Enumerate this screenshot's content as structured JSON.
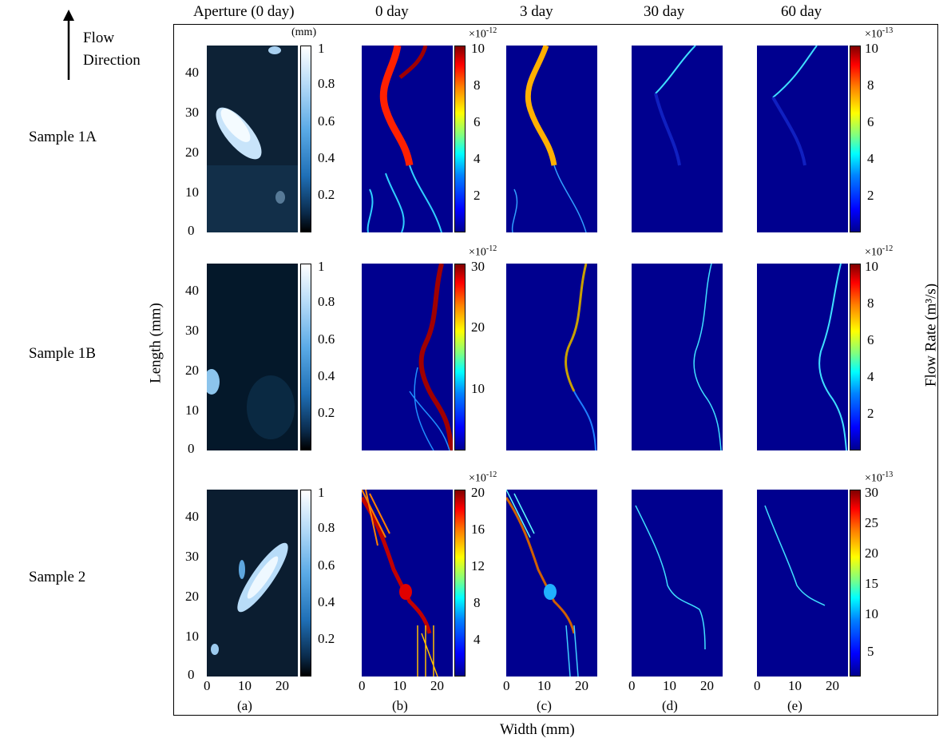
{
  "flow_direction": {
    "line1": "Flow",
    "line2": "Direction"
  },
  "column_headers": [
    "Aperture (0 day)",
    "0 day",
    "3 day",
    "30 day",
    "60 day"
  ],
  "row_labels": [
    "Sample 1A",
    "Sample 1B",
    "Sample 2"
  ],
  "aperture_unit": "(mm)",
  "aperture_ticks": [
    "1",
    "0.8",
    "0.6",
    "0.4",
    "0.2"
  ],
  "y_axis_label": "Length (mm)",
  "y_ticks": [
    "40",
    "30",
    "20",
    "10",
    "0"
  ],
  "x_ticks": [
    "0",
    "10",
    "20"
  ],
  "x_axis_label": "Width (mm)",
  "panel_letters": [
    "(a)",
    "(b)",
    "(c)",
    "(d)",
    "(e)"
  ],
  "right_axis_label": "Flow Rate (m³/s)",
  "row1": {
    "left_mult": {
      "base": "×10",
      "exp": "-12"
    },
    "left_ticks": [
      "10",
      "8",
      "6",
      "4",
      "2"
    ],
    "right_mult": {
      "base": "×10",
      "exp": "-13"
    },
    "right_ticks": [
      "10",
      "8",
      "6",
      "4",
      "2"
    ]
  },
  "row2": {
    "left_mult": {
      "base": "×10",
      "exp": "-12"
    },
    "left_ticks": [
      "30",
      "20",
      "10"
    ],
    "right_mult": {
      "base": "×10",
      "exp": "-12"
    },
    "right_ticks": [
      "10",
      "8",
      "6",
      "4",
      "2"
    ]
  },
  "row3": {
    "left_mult": {
      "base": "×10",
      "exp": "-12"
    },
    "left_ticks": [
      "20",
      "16",
      "12",
      "8",
      "4"
    ],
    "right_mult": {
      "base": "×10",
      "exp": "-13"
    },
    "right_ticks": [
      "30",
      "25",
      "20",
      "15",
      "10",
      "5"
    ]
  },
  "colors": {
    "jet_background": "#00008f",
    "frame": "#000000"
  }
}
